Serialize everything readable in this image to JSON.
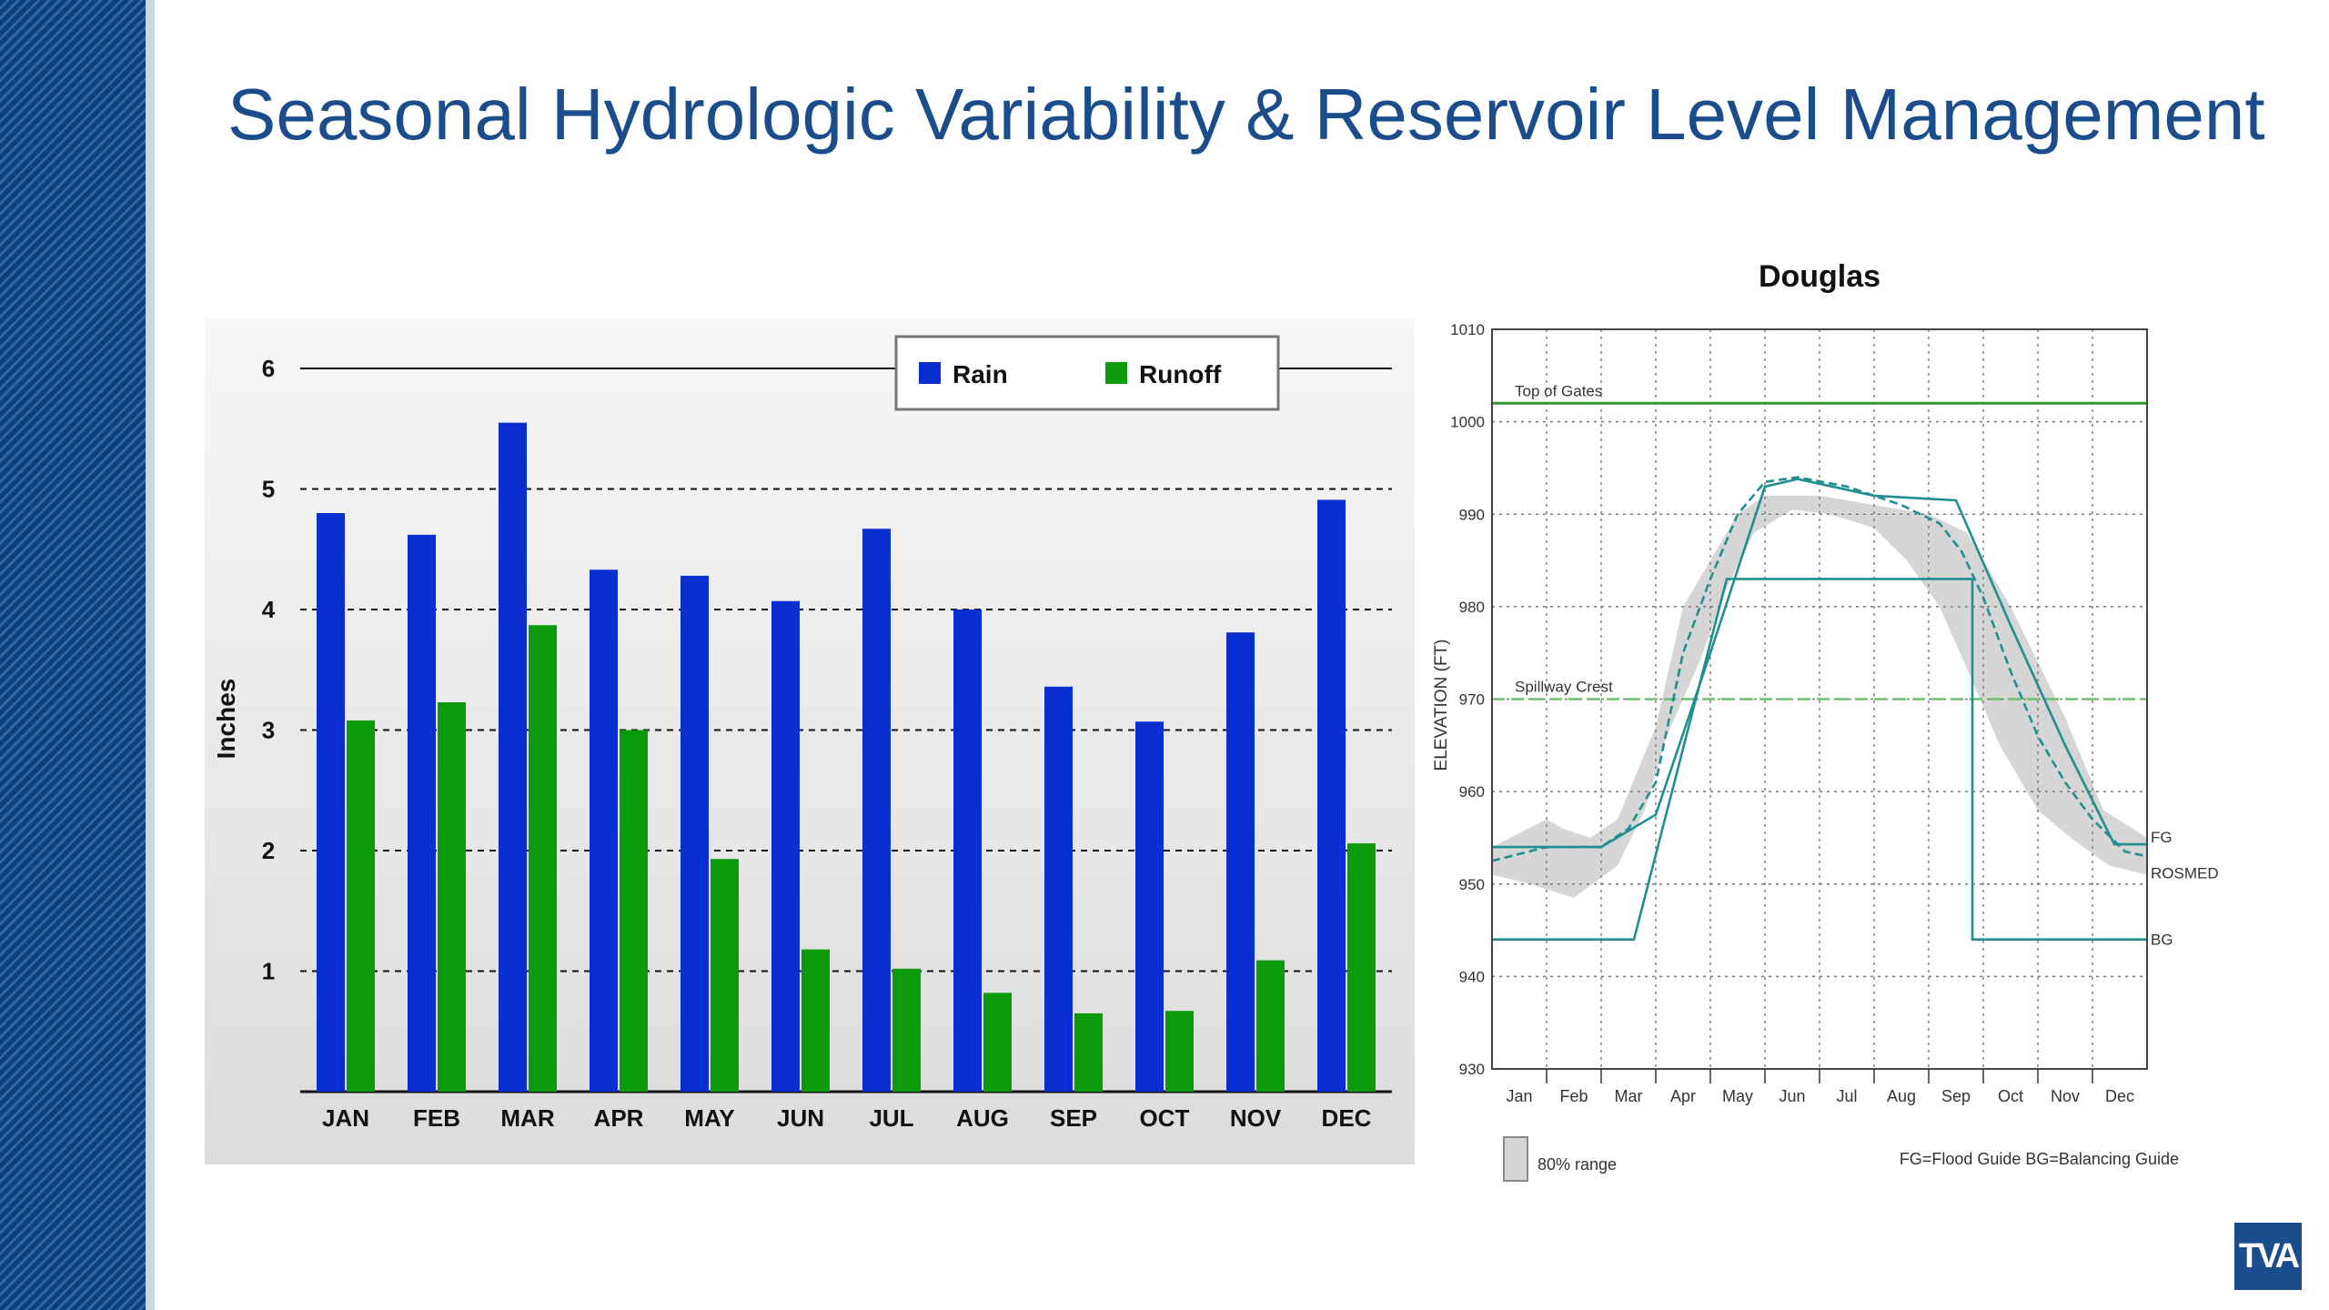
{
  "slide": {
    "title": "Seasonal Hydrologic Variability & Reservoir Level Management",
    "logo_text": "TVA"
  },
  "colors": {
    "title": "#1b4c8c",
    "sidebar": "#0d3f78",
    "rain": "#0a2fd0",
    "runoff": "#0a9a0a",
    "guide": "#1f8f8f",
    "top_of_gates": "#2e9a2e",
    "spillway": "#6cc06c",
    "range": "#d6d6d6"
  },
  "chart_data": [
    {
      "type": "bar",
      "categories": [
        "JAN",
        "FEB",
        "MAR",
        "APR",
        "MAY",
        "JUN",
        "JUL",
        "AUG",
        "SEP",
        "OCT",
        "NOV",
        "DEC"
      ],
      "series": [
        {
          "name": "Rain",
          "values": [
            4.8,
            4.62,
            5.55,
            4.33,
            4.28,
            4.07,
            4.67,
            4.0,
            3.36,
            3.07,
            3.81,
            4.91
          ]
        },
        {
          "name": "Runoff",
          "values": [
            3.08,
            3.23,
            3.87,
            3.0,
            1.93,
            1.18,
            1.02,
            0.82,
            0.65,
            0.67,
            1.09,
            2.06
          ]
        }
      ],
      "ylabel": "Inches",
      "ylim": [
        0,
        6
      ],
      "yticks": [
        "1",
        "2",
        "3",
        "4",
        "5",
        "6"
      ],
      "grid": "dashed horizontal",
      "legend": "top-right"
    },
    {
      "type": "line",
      "title": "Douglas",
      "ylabel": "ELEVATION (FT)",
      "ylim": [
        930,
        1010
      ],
      "yticks": [
        "930",
        "940",
        "950",
        "960",
        "970",
        "980",
        "990",
        "1000",
        "1010"
      ],
      "months": [
        "Jan",
        "Feb",
        "Mar",
        "Apr",
        "May",
        "Jun",
        "Jul",
        "Aug",
        "Sep",
        "Oct",
        "Nov",
        "Dec"
      ],
      "reference_lines": [
        {
          "label": "Top of Gates",
          "y": 1002
        },
        {
          "label": "Spillway Crest",
          "y": 970
        }
      ],
      "series": [
        {
          "name": "FG",
          "points": [
            [
              0,
              954
            ],
            [
              2,
              954
            ],
            [
              3,
              957.5
            ],
            [
              4,
              975
            ],
            [
              5,
              993
            ],
            [
              5.6,
              993.8
            ],
            [
              7,
              992
            ],
            [
              8.5,
              991.5
            ],
            [
              9.5,
              978
            ],
            [
              10.5,
              965
            ],
            [
              11.4,
              954.3
            ],
            [
              12,
              954.3
            ]
          ]
        },
        {
          "name": "ROSMED",
          "points": [
            [
              0,
              952.5
            ],
            [
              1,
              954
            ],
            [
              2,
              954
            ],
            [
              2.5,
              956
            ],
            [
              3,
              961
            ],
            [
              3.5,
              975
            ],
            [
              4,
              983
            ],
            [
              4.5,
              990
            ],
            [
              5,
              993.5
            ],
            [
              5.6,
              994
            ],
            [
              6.5,
              993
            ],
            [
              7.5,
              991
            ],
            [
              8.2,
              989
            ],
            [
              8.6,
              986
            ],
            [
              9,
              981
            ],
            [
              9.5,
              973
            ],
            [
              10,
              966
            ],
            [
              10.5,
              961
            ],
            [
              11,
              957
            ],
            [
              11.6,
              953.5
            ],
            [
              12,
              953
            ]
          ]
        },
        {
          "name": "BG",
          "points": [
            [
              0,
              944
            ],
            [
              2.6,
              944
            ],
            [
              4.3,
              983
            ],
            [
              8.8,
              983
            ],
            [
              8.8,
              944
            ],
            [
              12,
              944
            ]
          ]
        }
      ],
      "range": {
        "name": "80% range",
        "upper": [
          [
            0,
            954
          ],
          [
            1,
            957
          ],
          [
            1.3,
            956
          ],
          [
            1.8,
            955
          ],
          [
            2.3,
            957
          ],
          [
            3,
            967
          ],
          [
            3.5,
            980
          ],
          [
            4.5,
            990
          ],
          [
            5,
            992
          ],
          [
            6,
            992
          ],
          [
            7,
            991
          ],
          [
            8,
            990
          ],
          [
            8.7,
            988
          ],
          [
            9.5,
            980
          ],
          [
            10.5,
            968
          ],
          [
            11.2,
            958
          ],
          [
            12,
            955
          ]
        ],
        "lower": [
          [
            12,
            951
          ],
          [
            11.3,
            952
          ],
          [
            10.6,
            955
          ],
          [
            10,
            958
          ],
          [
            9.3,
            965
          ],
          [
            8.8,
            972
          ],
          [
            8.2,
            980
          ],
          [
            7.6,
            985
          ],
          [
            7,
            988.5
          ],
          [
            6.2,
            990
          ],
          [
            5.5,
            990.5
          ],
          [
            4.8,
            988
          ],
          [
            4.3,
            982
          ],
          [
            3.8,
            974
          ],
          [
            3.2,
            966
          ],
          [
            2.8,
            958
          ],
          [
            2.3,
            952
          ],
          [
            1.5,
            948.5
          ],
          [
            0.7,
            950
          ],
          [
            0,
            951
          ]
        ]
      },
      "line_labels": [
        "FG",
        "ROSMED",
        "BG"
      ],
      "footnote_left": "80% range",
      "footnote_right": "FG=Flood Guide  BG=Balancing Guide"
    }
  ]
}
